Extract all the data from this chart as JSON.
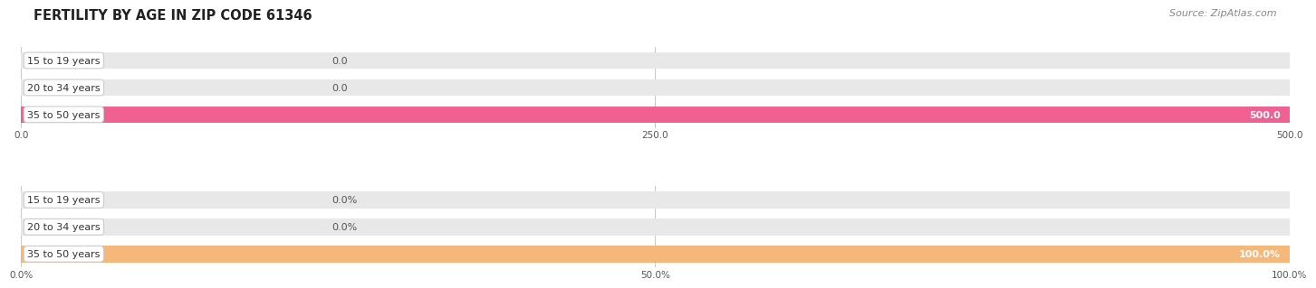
{
  "title": "FERTILITY BY AGE IN ZIP CODE 61346",
  "source_text": "Source: ZipAtlas.com",
  "top_chart": {
    "categories": [
      "15 to 19 years",
      "20 to 34 years",
      "35 to 50 years"
    ],
    "values": [
      0.0,
      0.0,
      500.0
    ],
    "bar_color": "#f06090",
    "bar_bg_color": "#e8e8e8",
    "xlim": [
      0,
      500
    ],
    "xticks": [
      0.0,
      250.0,
      500.0
    ],
    "xtick_labels": [
      "0.0",
      "250.0",
      "500.0"
    ],
    "value_labels": [
      "0.0",
      "0.0",
      "500.0"
    ]
  },
  "bottom_chart": {
    "categories": [
      "15 to 19 years",
      "20 to 34 years",
      "35 to 50 years"
    ],
    "values": [
      0.0,
      0.0,
      100.0
    ],
    "bar_color": "#f5b87a",
    "bar_bg_color": "#e8e8e8",
    "xlim": [
      0,
      100
    ],
    "xticks": [
      0.0,
      50.0,
      100.0
    ],
    "xtick_labels": [
      "0.0%",
      "50.0%",
      "100.0%"
    ],
    "value_labels": [
      "0.0%",
      "0.0%",
      "100.0%"
    ]
  },
  "title_fontsize": 10.5,
  "bar_label_fontsize": 8,
  "axis_label_fontsize": 7.5,
  "value_fontsize": 8,
  "source_fontsize": 8,
  "fig_bg_color": "#ffffff"
}
